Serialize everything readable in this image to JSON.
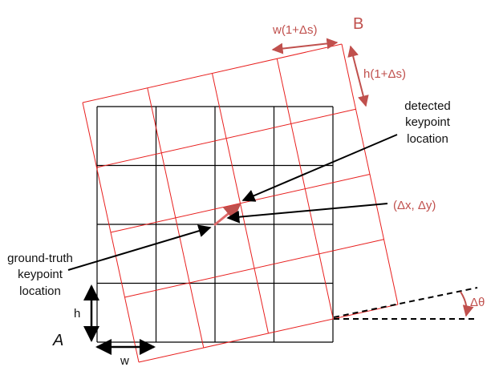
{
  "labels": {
    "B": "B",
    "A": "A",
    "w_scaled": "w(1+Δs)",
    "h_scaled": "h(1+Δs)",
    "detected": [
      "detected",
      "keypoint",
      "location"
    ],
    "offset": "(Δx, Δy)",
    "ground_truth": [
      "ground-truth",
      "keypoint",
      "location"
    ],
    "h": "h",
    "w": "w",
    "theta": "Δθ"
  },
  "colors": {
    "reference_grid": "#000000",
    "transformed_grid": "#e8201f",
    "annotation_red": "#c0504d",
    "ink": "#000000"
  },
  "grid": {
    "rows": 4,
    "cols": 4,
    "rotation_deg": -12,
    "scale_factor": 1.12
  }
}
